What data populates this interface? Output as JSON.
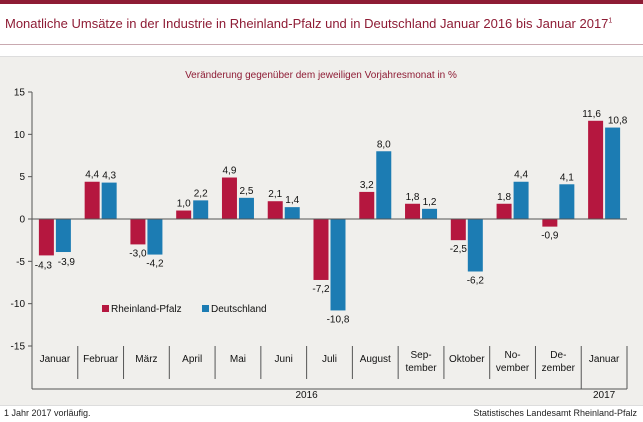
{
  "title": "Monatliche Umsätze in der Industrie in Rheinland-Pfalz und in Deutschland Januar 2016 bis  Januar 2017",
  "title_footnote_mark": "1",
  "footnote": "1 Jahr 2017 vorläufig.",
  "source": "Statistisches Landesamt Rheinland-Pfalz",
  "chart_data": {
    "type": "bar",
    "subtitle": "Veränderung gegenüber dem jeweiligen Vorjahresmonat in %",
    "categories": [
      [
        "Januar"
      ],
      [
        "Februar"
      ],
      [
        "März"
      ],
      [
        "April"
      ],
      [
        "Mai"
      ],
      [
        "Juni"
      ],
      [
        "Juli"
      ],
      [
        "August"
      ],
      [
        "Sep-",
        "tember"
      ],
      [
        "Oktober"
      ],
      [
        "No-",
        "vember"
      ],
      [
        "De-",
        "zember"
      ],
      [
        "Januar"
      ]
    ],
    "year_groups": [
      {
        "label": "2016",
        "start": 0,
        "end": 11
      },
      {
        "label": "2017",
        "start": 12,
        "end": 12
      }
    ],
    "series": [
      {
        "name": "Rheinland-Pfalz",
        "color": "#b5173f",
        "values": [
          -4.3,
          4.4,
          -3.0,
          1.0,
          4.9,
          2.1,
          -7.2,
          3.2,
          1.8,
          -2.5,
          1.8,
          -0.9,
          11.6
        ],
        "labels": [
          "-4,3",
          "4,4",
          "-3,0",
          "1,0",
          "4,9",
          "2,1",
          "-7,2",
          "3,2",
          "1,8",
          "-2,5",
          "1,8",
          "-0,9",
          "11,6"
        ]
      },
      {
        "name": "Deutschland",
        "color": "#1c7cb3",
        "values": [
          -3.9,
          4.3,
          -4.2,
          2.2,
          2.5,
          1.4,
          -10.8,
          8.0,
          1.2,
          -6.2,
          4.4,
          4.1,
          10.8
        ],
        "labels": [
          "-3,9",
          "4,3",
          "-4,2",
          "2,2",
          "2,5",
          "1,4",
          "-10,8",
          "8,0",
          "1,2",
          "-6,2",
          "4,4",
          "4,1",
          "10,8"
        ]
      }
    ],
    "ylim": [
      -15,
      15
    ],
    "yticks": [
      15,
      10,
      5,
      0,
      -5,
      -10,
      -15
    ],
    "ytick_labels": [
      "15",
      "10",
      "5",
      "0",
      "-5",
      "-10",
      "-15"
    ],
    "legend_position": "bottom-left"
  }
}
